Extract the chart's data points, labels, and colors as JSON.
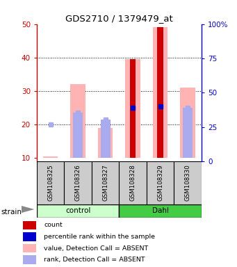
{
  "title": "GDS2710 / 1379479_at",
  "samples": [
    "GSM108325",
    "GSM108326",
    "GSM108327",
    "GSM108328",
    "GSM108329",
    "GSM108330"
  ],
  "ylim_left": [
    9,
    50
  ],
  "ylim_right": [
    0,
    100
  ],
  "yticks_left": [
    10,
    20,
    30,
    40,
    50
  ],
  "yticks_right": [
    0,
    25,
    50,
    75,
    100
  ],
  "yticklabels_right": [
    "0",
    "25",
    "50",
    "75",
    "100%"
  ],
  "pink_bar_top": [
    10.5,
    32.0,
    19.0,
    39.5,
    49.0,
    31.0
  ],
  "lightblue_bar_top": [
    10.0,
    23.5,
    21.5,
    10.0,
    10.0,
    25.0
  ],
  "red_bar_top": [
    10.0,
    10.0,
    10.0,
    39.5,
    49.0,
    10.0
  ],
  "blue_sq_y": [
    20.0,
    23.5,
    21.5,
    25.0,
    25.5,
    25.0
  ],
  "blue_sq_show": [
    false,
    false,
    false,
    true,
    true,
    false
  ],
  "lblue_sq_show": [
    true,
    true,
    true,
    false,
    false,
    true
  ],
  "bar_bottom": 10,
  "color_red": "#cc0000",
  "color_pink": "#ffb3b3",
  "color_blue": "#0000cc",
  "color_lightblue": "#aaaaee",
  "color_ctrl_light": "#ccffcc",
  "color_dahl_dark": "#44cc44",
  "color_gray": "#cccccc",
  "left_axis_color": "#cc0000",
  "right_axis_color": "#0000cc",
  "legend_items": [
    {
      "color": "#cc0000",
      "label": "count"
    },
    {
      "color": "#0000cc",
      "label": "percentile rank within the sample"
    },
    {
      "color": "#ffb3b3",
      "label": "value, Detection Call = ABSENT"
    },
    {
      "color": "#aaaaee",
      "label": "rank, Detection Call = ABSENT"
    }
  ]
}
